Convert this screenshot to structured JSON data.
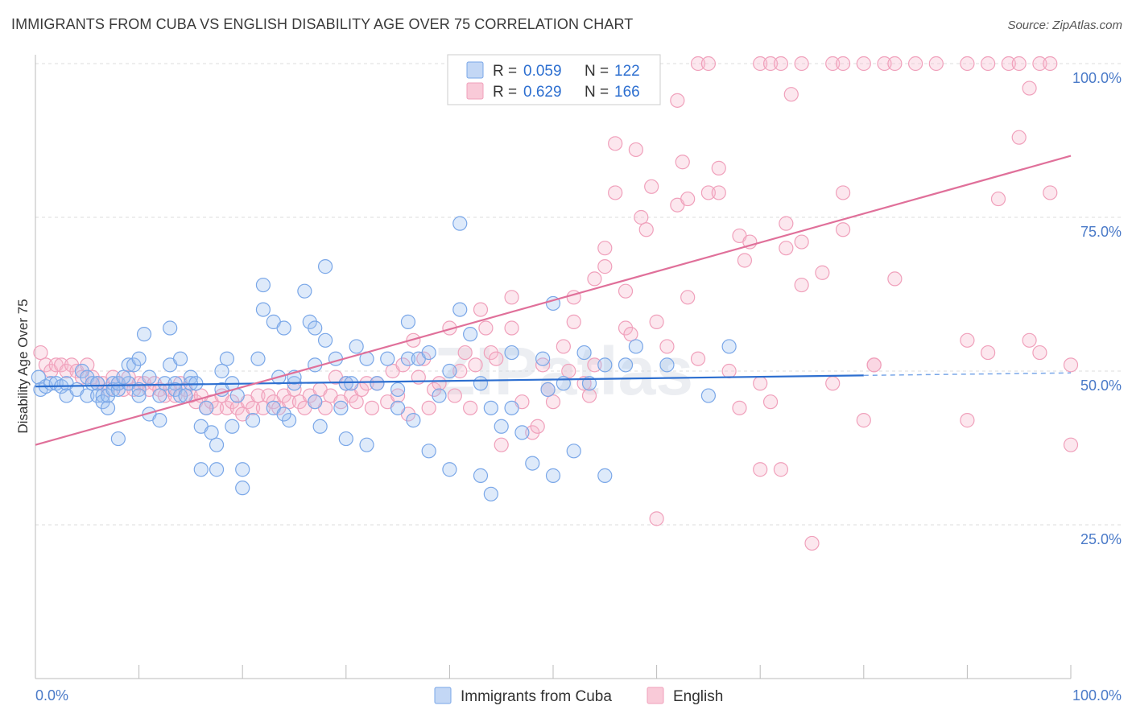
{
  "header": {
    "title": "IMMIGRANTS FROM CUBA VS ENGLISH DISABILITY AGE OVER 75 CORRELATION CHART",
    "source": "Source: ZipAtlas.com"
  },
  "colors": {
    "cuba": "#7aa7e8",
    "cuba_line": "#2d6fd0",
    "english": "#f0a0bb",
    "english_line": "#e0709a",
    "accent_text": "#2d6fd0",
    "label_text": "#333333"
  },
  "legend_box": {
    "rows": [
      {
        "r_label": "R = ",
        "r_value": "0.059",
        "n_label": "N = ",
        "n_value": "122"
      },
      {
        "r_label": "R = ",
        "r_value": "0.629",
        "n_label": "N = ",
        "n_value": "166"
      }
    ]
  },
  "bottom_legend": {
    "items": [
      "Immigrants from Cuba",
      "English"
    ]
  },
  "watermark": "ZIPatlas",
  "chart_data": {
    "type": "scatter",
    "title": "IMMIGRANTS FROM CUBA VS ENGLISH DISABILITY AGE OVER 75 CORRELATION CHART",
    "xlabel": "",
    "ylabel": "Disability Age Over 75",
    "xlim": [
      0,
      100
    ],
    "ylim": [
      0,
      100
    ],
    "x_tick_labels": [
      "0.0%",
      "100.0%"
    ],
    "y_tick_labels": [
      "25.0%",
      "50.0%",
      "75.0%",
      "100.0%"
    ],
    "y_ticks": [
      25,
      50,
      75,
      100
    ],
    "grid": true,
    "legend_position": "top-center",
    "series": [
      {
        "name": "Immigrants from Cuba",
        "R": 0.059,
        "N": 122,
        "trend": {
          "x0": 0,
          "y0": 47.5,
          "x1": 80,
          "y1": 49.3,
          "dashed_to": 100,
          "dashed_y": 49.7
        },
        "points": [
          [
            0.3,
            49
          ],
          [
            0.5,
            47
          ],
          [
            1,
            47.5
          ],
          [
            1.5,
            48
          ],
          [
            2,
            48
          ],
          [
            2.5,
            47.5
          ],
          [
            3,
            48
          ],
          [
            3,
            46
          ],
          [
            4,
            47
          ],
          [
            4.5,
            50
          ],
          [
            5,
            49
          ],
          [
            5,
            46
          ],
          [
            5.5,
            48
          ],
          [
            6,
            48
          ],
          [
            6,
            46
          ],
          [
            6.5,
            46
          ],
          [
            6.5,
            45
          ],
          [
            7,
            44
          ],
          [
            7,
            46
          ],
          [
            7.5,
            48
          ],
          [
            7.5,
            47
          ],
          [
            8,
            39
          ],
          [
            8,
            47
          ],
          [
            8,
            48
          ],
          [
            9,
            51
          ],
          [
            9,
            48
          ],
          [
            8.5,
            49
          ],
          [
            9.5,
            51
          ],
          [
            10,
            52
          ],
          [
            10,
            47
          ],
          [
            10,
            46
          ],
          [
            10.5,
            56
          ],
          [
            11,
            49
          ],
          [
            11,
            43
          ],
          [
            12,
            42
          ],
          [
            12,
            46
          ],
          [
            12.5,
            48
          ],
          [
            13,
            57
          ],
          [
            13,
            51
          ],
          [
            13.5,
            48
          ],
          [
            13.5,
            47
          ],
          [
            14,
            52
          ],
          [
            14,
            46
          ],
          [
            14.5,
            46
          ],
          [
            15,
            49
          ],
          [
            15,
            48
          ],
          [
            15.5,
            48
          ],
          [
            16,
            41
          ],
          [
            16,
            34
          ],
          [
            16.5,
            44
          ],
          [
            17,
            40
          ],
          [
            17.5,
            38
          ],
          [
            17.5,
            34
          ],
          [
            18,
            47
          ],
          [
            18.5,
            52
          ],
          [
            18,
            50
          ],
          [
            19,
            41
          ],
          [
            19,
            48
          ],
          [
            19.5,
            46
          ],
          [
            20,
            34
          ],
          [
            20,
            31
          ],
          [
            21,
            42
          ],
          [
            21.5,
            52
          ],
          [
            22,
            60
          ],
          [
            22,
            64
          ],
          [
            23,
            58
          ],
          [
            23,
            44
          ],
          [
            23.5,
            49
          ],
          [
            24,
            57
          ],
          [
            24.5,
            42
          ],
          [
            24,
            43
          ],
          [
            25,
            48
          ],
          [
            25,
            49
          ],
          [
            26,
            63
          ],
          [
            26.5,
            58
          ],
          [
            27,
            51
          ],
          [
            27,
            45
          ],
          [
            27,
            57
          ],
          [
            27.5,
            41
          ],
          [
            28,
            55
          ],
          [
            28,
            67
          ],
          [
            29,
            52
          ],
          [
            29.5,
            44
          ],
          [
            30,
            48
          ],
          [
            30,
            39
          ],
          [
            30.5,
            48
          ],
          [
            31,
            54
          ],
          [
            32,
            38
          ],
          [
            32,
            52
          ],
          [
            33,
            48
          ],
          [
            34,
            52
          ],
          [
            35,
            44
          ],
          [
            35,
            47
          ],
          [
            36,
            52
          ],
          [
            36,
            58
          ],
          [
            36.5,
            42
          ],
          [
            37,
            52
          ],
          [
            38,
            37
          ],
          [
            38,
            53
          ],
          [
            39,
            46
          ],
          [
            40,
            50
          ],
          [
            40,
            34
          ],
          [
            41,
            60
          ],
          [
            41,
            74
          ],
          [
            42,
            56
          ],
          [
            43,
            48
          ],
          [
            43,
            33
          ],
          [
            44,
            44
          ],
          [
            44,
            30
          ],
          [
            45,
            41
          ],
          [
            46,
            53
          ],
          [
            46,
            44
          ],
          [
            47,
            40
          ],
          [
            48,
            35
          ],
          [
            49,
            52
          ],
          [
            50,
            61
          ],
          [
            49.5,
            47
          ],
          [
            50,
            33
          ],
          [
            51,
            48
          ],
          [
            52,
            37
          ],
          [
            53,
            53
          ],
          [
            53.5,
            48
          ],
          [
            55,
            51
          ],
          [
            55,
            33
          ],
          [
            57,
            51
          ],
          [
            58,
            54
          ],
          [
            61,
            51
          ],
          [
            65,
            46
          ],
          [
            67,
            54
          ]
        ]
      },
      {
        "name": "English",
        "R": 0.629,
        "N": 166,
        "trend": {
          "x0": 0,
          "y0": 38,
          "x1": 100,
          "y1": 85
        },
        "points": [
          [
            0.5,
            53
          ],
          [
            1,
            51
          ],
          [
            1.5,
            50
          ],
          [
            2,
            51
          ],
          [
            2.5,
            51
          ],
          [
            3,
            50
          ],
          [
            3.5,
            51
          ],
          [
            4,
            50
          ],
          [
            4.5,
            49
          ],
          [
            5,
            51
          ],
          [
            5.5,
            49
          ],
          [
            6,
            48
          ],
          [
            6.5,
            48
          ],
          [
            7,
            47
          ],
          [
            7.5,
            49
          ],
          [
            8,
            48
          ],
          [
            8.5,
            47
          ],
          [
            9,
            49
          ],
          [
            9.5,
            47
          ],
          [
            10,
            48
          ],
          [
            10.5,
            48
          ],
          [
            11,
            47
          ],
          [
            11.5,
            48
          ],
          [
            12,
            47
          ],
          [
            12.5,
            46
          ],
          [
            13,
            47
          ],
          [
            13.5,
            46
          ],
          [
            14,
            48
          ],
          [
            14.5,
            47
          ],
          [
            15,
            46
          ],
          [
            15.5,
            45
          ],
          [
            16,
            46
          ],
          [
            16.5,
            44
          ],
          [
            17,
            45
          ],
          [
            17.5,
            44
          ],
          [
            18,
            46
          ],
          [
            18.5,
            44
          ],
          [
            19,
            45
          ],
          [
            19.5,
            44
          ],
          [
            20,
            43
          ],
          [
            20.5,
            45
          ],
          [
            21,
            44
          ],
          [
            21.5,
            46
          ],
          [
            22,
            44
          ],
          [
            22.5,
            46
          ],
          [
            23,
            45
          ],
          [
            23.5,
            44
          ],
          [
            24,
            46
          ],
          [
            24.5,
            45
          ],
          [
            25,
            47
          ],
          [
            25.5,
            45
          ],
          [
            26,
            44
          ],
          [
            26.5,
            46
          ],
          [
            27,
            45
          ],
          [
            27.5,
            47
          ],
          [
            28,
            44
          ],
          [
            28.5,
            46
          ],
          [
            29,
            49
          ],
          [
            29.5,
            45
          ],
          [
            30,
            48
          ],
          [
            30.5,
            46
          ],
          [
            31,
            45
          ],
          [
            31.5,
            47
          ],
          [
            32,
            48
          ],
          [
            32.5,
            44
          ],
          [
            33,
            48
          ],
          [
            34,
            45
          ],
          [
            34.5,
            50
          ],
          [
            35,
            46
          ],
          [
            35.5,
            51
          ],
          [
            36,
            43
          ],
          [
            36.5,
            55
          ],
          [
            37,
            49
          ],
          [
            37.5,
            52
          ],
          [
            38,
            44
          ],
          [
            38.5,
            47
          ],
          [
            39,
            48
          ],
          [
            40,
            57
          ],
          [
            40.5,
            46
          ],
          [
            41,
            50
          ],
          [
            41.5,
            53
          ],
          [
            42,
            44
          ],
          [
            42.5,
            51
          ],
          [
            43,
            60
          ],
          [
            43.5,
            57
          ],
          [
            44,
            53
          ],
          [
            44.5,
            52
          ],
          [
            45,
            38
          ],
          [
            46,
            62
          ],
          [
            46,
            57
          ],
          [
            47,
            45
          ],
          [
            48,
            40
          ],
          [
            48.5,
            41
          ],
          [
            49,
            51
          ],
          [
            49.5,
            47
          ],
          [
            50,
            45
          ],
          [
            51,
            54
          ],
          [
            51.5,
            50
          ],
          [
            52,
            58
          ],
          [
            52,
            62
          ],
          [
            53,
            48
          ],
          [
            53.5,
            46
          ],
          [
            54,
            51
          ],
          [
            54,
            65
          ],
          [
            55,
            67
          ],
          [
            55,
            70
          ],
          [
            56,
            79
          ],
          [
            56,
            87
          ],
          [
            57,
            57
          ],
          [
            57,
            63
          ],
          [
            57.5,
            56
          ],
          [
            58,
            86
          ],
          [
            58.5,
            75
          ],
          [
            59,
            73
          ],
          [
            59.5,
            80
          ],
          [
            60,
            26
          ],
          [
            60,
            58
          ],
          [
            61,
            54
          ],
          [
            62,
            94
          ],
          [
            62,
            77
          ],
          [
            62.5,
            84
          ],
          [
            63,
            62
          ],
          [
            63,
            78
          ],
          [
            64,
            52
          ],
          [
            65,
            79
          ],
          [
            66,
            83
          ],
          [
            66,
            79
          ],
          [
            67,
            50
          ],
          [
            68,
            44
          ],
          [
            68,
            72
          ],
          [
            68.5,
            68
          ],
          [
            69,
            71
          ],
          [
            70,
            34
          ],
          [
            70,
            48
          ],
          [
            71,
            45
          ],
          [
            72,
            34
          ],
          [
            72.5,
            74
          ],
          [
            72.5,
            70
          ],
          [
            73,
            95
          ],
          [
            74,
            71
          ],
          [
            74,
            64
          ],
          [
            75,
            22
          ],
          [
            76,
            66
          ],
          [
            77,
            48
          ],
          [
            78,
            79
          ],
          [
            78,
            73
          ],
          [
            80,
            42
          ],
          [
            81,
            51
          ],
          [
            81,
            51
          ],
          [
            83,
            65
          ],
          [
            90,
            42
          ],
          [
            90,
            55
          ],
          [
            92,
            53
          ],
          [
            93,
            78
          ],
          [
            95,
            88
          ],
          [
            96,
            96
          ],
          [
            96,
            55
          ],
          [
            97,
            53
          ],
          [
            98,
            79
          ],
          [
            100,
            38
          ],
          [
            100,
            51
          ],
          [
            57,
            100
          ],
          [
            64,
            100
          ],
          [
            65,
            100
          ],
          [
            70,
            100
          ],
          [
            71,
            100
          ],
          [
            72,
            100
          ],
          [
            74,
            100
          ],
          [
            77,
            100
          ],
          [
            78,
            100
          ],
          [
            80,
            100
          ],
          [
            82,
            100
          ],
          [
            83,
            100
          ],
          [
            85,
            100
          ],
          [
            87,
            100
          ],
          [
            90,
            100
          ],
          [
            92,
            100
          ],
          [
            94,
            100
          ],
          [
            95,
            100
          ],
          [
            97,
            100
          ],
          [
            98,
            100
          ]
        ]
      }
    ]
  }
}
